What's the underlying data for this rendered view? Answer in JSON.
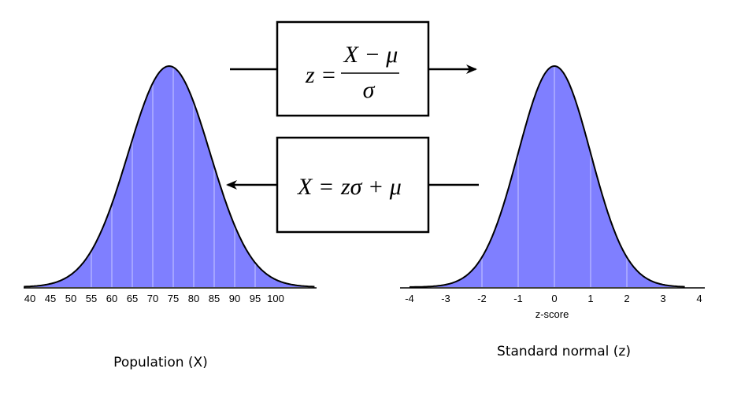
{
  "left_chart": {
    "caption": "Population (X)",
    "ticks": [
      "40",
      "45",
      "50",
      "55",
      "60",
      "65",
      "70",
      "75",
      "80",
      "85",
      "90",
      "95",
      "100"
    ],
    "fill_color": "#7f7fff",
    "mean": 74,
    "sd": 10
  },
  "right_chart": {
    "caption": "Standard normal (z)",
    "axis_title": "z-score",
    "ticks": [
      "-4",
      "-3",
      "-2",
      "-1",
      "0",
      "1",
      "2",
      "3",
      "4"
    ],
    "fill_color": "#7f7fff",
    "mean": 0,
    "sd": 1
  },
  "formula_forward": {
    "lhs": "z",
    "eq": "=",
    "numerator": "X − μ",
    "denominator": "σ"
  },
  "formula_inverse": {
    "lhs": "X",
    "eq": "=",
    "rhs": "zσ + μ"
  },
  "arrows": {
    "forward_direction": "right",
    "inverse_direction": "left"
  }
}
